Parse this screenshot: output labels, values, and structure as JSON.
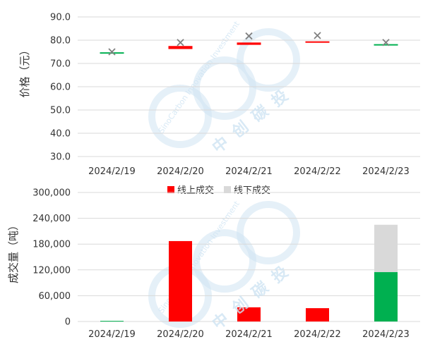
{
  "chart_data": [
    {
      "type": "scatter",
      "title": "",
      "ylabel": "价格（元）",
      "xlabel": "",
      "ylim": [
        30,
        90
      ],
      "yticks": [
        "30.0",
        "40.0",
        "50.0",
        "60.0",
        "70.0",
        "80.0",
        "90.0"
      ],
      "categories": [
        "2024/2/19",
        "2024/2/20",
        "2024/2/21",
        "2024/2/22",
        "2024/2/23"
      ],
      "range_bars": [
        {
          "open": 74.5,
          "close": 74.8,
          "color": "#00b050"
        },
        {
          "open": 76.2,
          "close": 77.5,
          "color": "#ff0000"
        },
        {
          "open": 78.0,
          "close": 79.0,
          "color": "#ff0000"
        },
        {
          "open": 79.0,
          "close": 79.5,
          "color": "#ff0000"
        },
        {
          "open": 77.8,
          "close": 78.3,
          "color": "#00b050"
        }
      ],
      "markers": [
        75.0,
        79.0,
        81.8,
        82.0,
        79.0
      ],
      "marker_color": "#808080",
      "grid": true
    },
    {
      "type": "bar",
      "title": "",
      "ylabel": "成交量（吨）",
      "xlabel": "",
      "ylim": [
        0,
        300000
      ],
      "yticks": [
        "0",
        "60,000",
        "120,000",
        "180,000",
        "240,000",
        "300,000"
      ],
      "categories": [
        "2024/2/19",
        "2024/2/20",
        "2024/2/21",
        "2024/2/22",
        "2024/2/23"
      ],
      "stacked": true,
      "series": [
        {
          "name": "线上成交",
          "values": [
            1500,
            187000,
            33000,
            31000,
            115000
          ],
          "colors": [
            "#00b050",
            "#ff0000",
            "#ff0000",
            "#ff0000",
            "#00b050"
          ]
        },
        {
          "name": "线下成交",
          "values": [
            0,
            0,
            0,
            0,
            110000
          ],
          "color": "#d9d9d9"
        }
      ],
      "legend": "top",
      "legend_colors": [
        "#ff0000",
        "#d9d9d9"
      ],
      "grid": true
    }
  ],
  "watermark": {
    "text": "SinoCarbon Innovation Investment",
    "cn": [
      "中",
      "创",
      "碳",
      "投"
    ],
    "color": "#cfe4f3"
  }
}
